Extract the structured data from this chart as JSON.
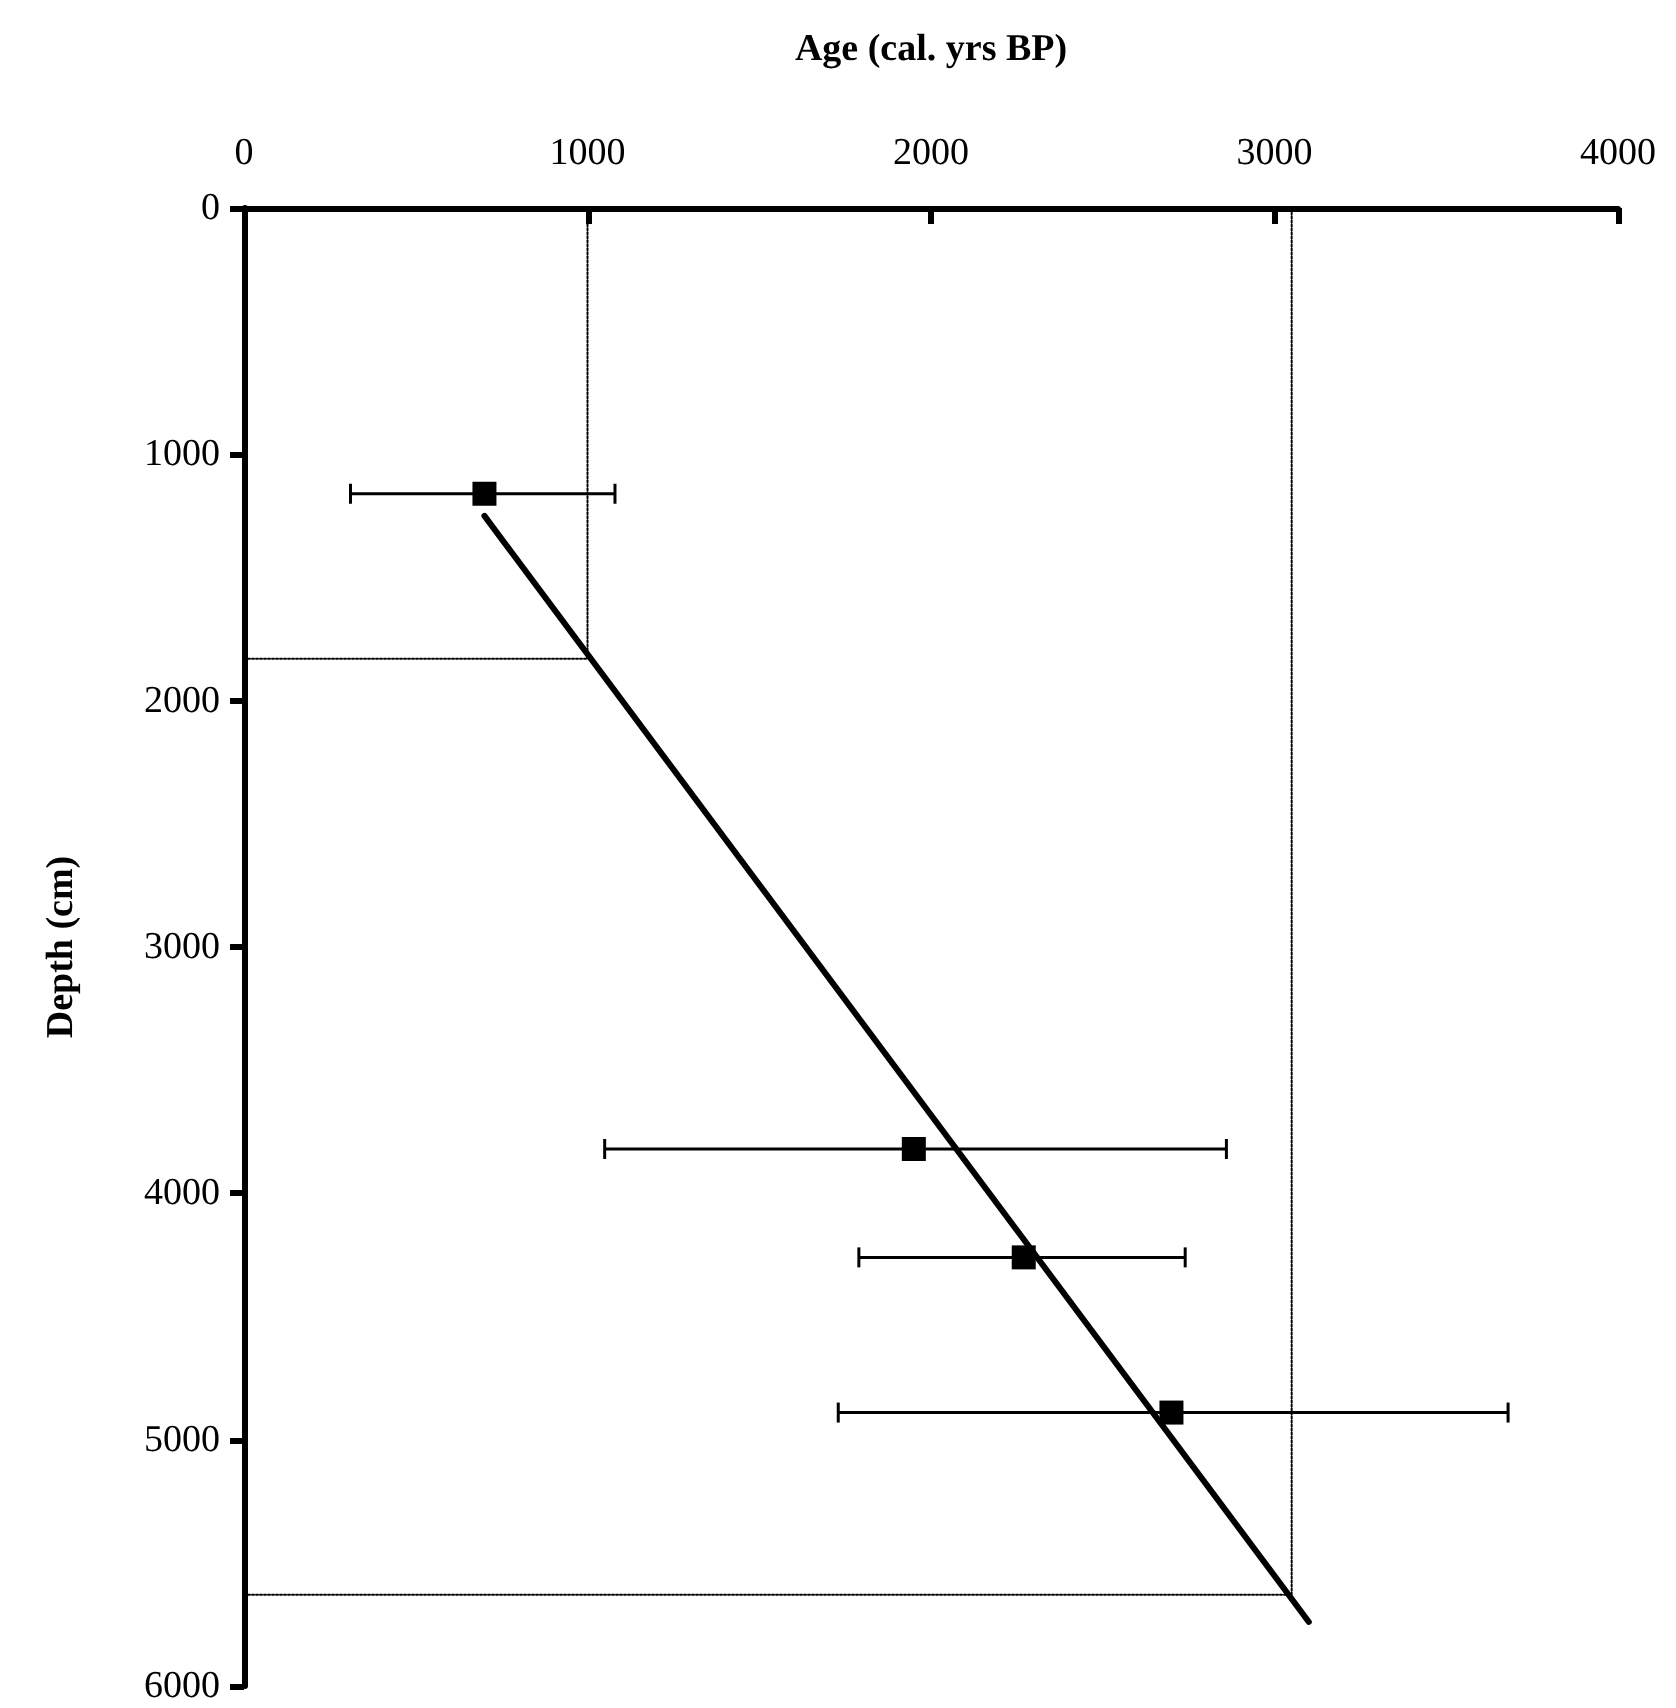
{
  "chart_data": {
    "type": "scatter",
    "xlabel": "Age (cal. yrs BP)",
    "ylabel": "Depth (cm)",
    "xlim": [
      0,
      4000
    ],
    "xticks": [
      0,
      1000,
      2000,
      3000,
      4000
    ],
    "ylim": [
      6000,
      0
    ],
    "yticks": [
      0,
      1000,
      2000,
      3000,
      4000,
      5000,
      6000
    ],
    "grid": false,
    "marker": "square",
    "series": [
      {
        "color": "#000000",
        "x": [
          700,
          1950,
          2270,
          2700
        ],
        "values": [
          1160,
          3820,
          4260,
          4890
        ],
        "xerrors": [
          [
            310,
            1080
          ],
          [
            1050,
            2860
          ],
          [
            1790,
            2740
          ],
          [
            1730,
            3680
          ]
        ]
      },
      {
        "type": "line",
        "color": "#000000",
        "line_style": "solid",
        "marker": "none",
        "x": [
          700,
          3100
        ],
        "values": [
          1250,
          5740
        ]
      },
      {
        "type": "line",
        "color": "#000000",
        "line_style": "dotted",
        "marker": "none",
        "x": [
          0,
          1000,
          1000
        ],
        "values": [
          1830,
          1830,
          0
        ]
      },
      {
        "type": "line",
        "color": "#000000",
        "line_style": "dotted",
        "marker": "none",
        "x": [
          0,
          3050,
          3050
        ],
        "values": [
          5630,
          5630,
          0
        ]
      }
    ]
  }
}
